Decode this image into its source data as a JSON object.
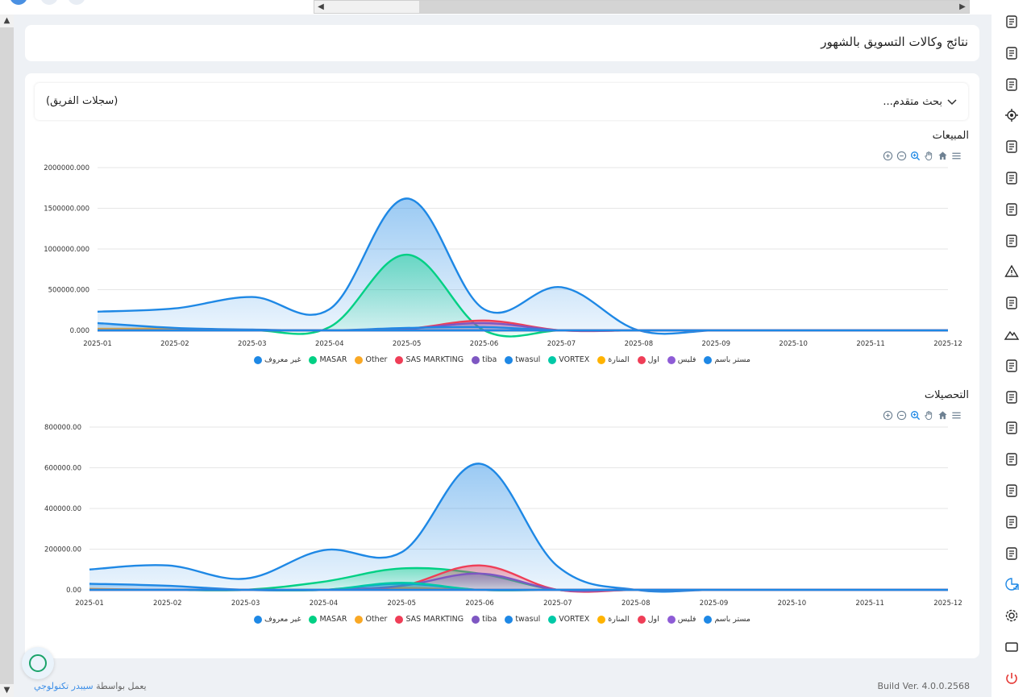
{
  "page_title": "نتائج وكالات التسويق بالشهور",
  "search": {
    "advanced_label": "بحث متقدم...",
    "team_records_label": "(سجلات الفريق)"
  },
  "footer": {
    "build": "Build Ver. 4.0.0.2568",
    "credit_prefix": "يعمل بواسطة",
    "credit_brand": "سيبدر تكنولوجي"
  },
  "sidebar_icons": [
    "building-icon",
    "lamp-icon",
    "phone-calls-icon",
    "target-icon",
    "telephone-icon",
    "folder-add-icon",
    "team-icon",
    "money-icon",
    "warning-icon",
    "video-call-icon",
    "mountain-icon",
    "invoice-icon",
    "pen-icon",
    "printer-user-icon",
    "delivery-truck-icon",
    "user-money-icon",
    "add-document-icon",
    "document-search-icon",
    "reports-chart-icon",
    "settings-icon",
    "window-icon",
    "power-icon"
  ],
  "colors": {
    "primary": "#1e88e5",
    "masar": "#00d084",
    "other": "#f9a825",
    "sas": "#ef3e57",
    "tiba": "#7e57c2",
    "twasul": "#1e88e5",
    "vortex": "#00c9a7",
    "manara": "#ffb300",
    "awal": "#ef3e57",
    "phils": "#8e5cd6",
    "mr_basem": "#1e88e5"
  },
  "charts": [
    {
      "title": "المبيعات",
      "chart_data": {
        "type": "area",
        "title": "المبيعات",
        "categories": [
          "2025-01",
          "2025-02",
          "2025-03",
          "2025-04",
          "2025-05",
          "2025-06",
          "2025-07",
          "2025-08",
          "2025-09",
          "2025-10",
          "2025-11",
          "2025-12"
        ],
        "y_ticks": [
          "0.000",
          "500000.000",
          "1000000.000",
          "1500000.000",
          "2000000.000"
        ],
        "ylim": [
          0,
          2000000
        ],
        "series": [
          {
            "name": "غير معروف",
            "color": "#1e88e5",
            "values": [
              230000,
              270000,
              410000,
              260000,
              1620000,
              260000,
              530000,
              0,
              0,
              0,
              0,
              0
            ]
          },
          {
            "name": "MASAR",
            "color": "#00d084",
            "values": [
              0,
              0,
              0,
              40000,
              930000,
              0,
              0,
              0,
              0,
              0,
              0,
              0
            ]
          },
          {
            "name": "Other",
            "color": "#f9a825",
            "values": [
              20000,
              20000,
              0,
              0,
              0,
              0,
              0,
              0,
              0,
              0,
              0,
              0
            ]
          },
          {
            "name": "SAS MARKTING",
            "color": "#ef3e57",
            "values": [
              0,
              0,
              0,
              0,
              20000,
              120000,
              0,
              0,
              0,
              0,
              0,
              0
            ]
          },
          {
            "name": "tiba",
            "color": "#7e57c2",
            "values": [
              0,
              0,
              0,
              0,
              20000,
              90000,
              0,
              0,
              0,
              0,
              0,
              0
            ]
          },
          {
            "name": "twasul",
            "color": "#1e88e5",
            "values": [
              90000,
              30000,
              10000,
              0,
              30000,
              40000,
              0,
              0,
              0,
              0,
              0,
              0
            ]
          },
          {
            "name": "VORTEX",
            "color": "#00c9a7",
            "values": [
              0,
              0,
              0,
              0,
              0,
              0,
              0,
              0,
              0,
              0,
              0,
              0
            ]
          },
          {
            "name": "المنارة",
            "color": "#ffb300",
            "values": [
              0,
              0,
              0,
              0,
              0,
              0,
              0,
              0,
              0,
              0,
              0,
              0
            ]
          },
          {
            "name": "اول",
            "color": "#ef3e57",
            "values": [
              0,
              0,
              0,
              0,
              0,
              0,
              0,
              0,
              0,
              0,
              0,
              0
            ]
          },
          {
            "name": "فليس",
            "color": "#8e5cd6",
            "values": [
              0,
              0,
              0,
              0,
              0,
              0,
              0,
              0,
              0,
              0,
              0,
              0
            ]
          },
          {
            "name": "مستر باسم",
            "color": "#1e88e5",
            "values": [
              0,
              0,
              0,
              0,
              0,
              0,
              0,
              0,
              0,
              0,
              0,
              0
            ]
          }
        ],
        "legend": "bottom-center",
        "grid": true
      }
    },
    {
      "title": "التحصيلات",
      "chart_data": {
        "type": "area",
        "title": "التحصيلات",
        "categories": [
          "2025-01",
          "2025-02",
          "2025-03",
          "2025-04",
          "2025-05",
          "2025-06",
          "2025-07",
          "2025-08",
          "2025-09",
          "2025-10",
          "2025-11",
          "2025-12"
        ],
        "y_ticks": [
          "0.00",
          "200000.00",
          "400000.00",
          "600000.00",
          "800000.00"
        ],
        "ylim": [
          0,
          800000
        ],
        "series": [
          {
            "name": "غير معروف",
            "color": "#1e88e5",
            "values": [
              100000,
              120000,
              55000,
              195000,
              185000,
              620000,
              115000,
              0,
              0,
              0,
              0,
              0
            ]
          },
          {
            "name": "MASAR",
            "color": "#00d084",
            "values": [
              0,
              0,
              0,
              40000,
              105000,
              80000,
              0,
              0,
              0,
              0,
              0,
              0
            ]
          },
          {
            "name": "Other",
            "color": "#f9a825",
            "values": [
              5000,
              0,
              0,
              0,
              10000,
              0,
              0,
              0,
              0,
              0,
              0,
              0
            ]
          },
          {
            "name": "SAS MARKTING",
            "color": "#ef3e57",
            "values": [
              0,
              0,
              0,
              0,
              20000,
              120000,
              0,
              0,
              0,
              0,
              0,
              0
            ]
          },
          {
            "name": "tiba",
            "color": "#7e57c2",
            "values": [
              0,
              0,
              0,
              0,
              20000,
              80000,
              0,
              0,
              0,
              0,
              0,
              0
            ]
          },
          {
            "name": "twasul",
            "color": "#1e88e5",
            "values": [
              30000,
              20000,
              0,
              0,
              30000,
              0,
              0,
              0,
              0,
              0,
              0,
              0
            ]
          },
          {
            "name": "VORTEX",
            "color": "#00c9a7",
            "values": [
              0,
              0,
              0,
              0,
              35000,
              0,
              0,
              0,
              0,
              0,
              0,
              0
            ]
          },
          {
            "name": "المنارة",
            "color": "#ffb300",
            "values": [
              0,
              0,
              0,
              0,
              0,
              0,
              0,
              0,
              0,
              0,
              0,
              0
            ]
          },
          {
            "name": "اول",
            "color": "#ef3e57",
            "values": [
              0,
              0,
              0,
              0,
              0,
              0,
              0,
              0,
              0,
              0,
              0,
              0
            ]
          },
          {
            "name": "فليس",
            "color": "#8e5cd6",
            "values": [
              0,
              0,
              0,
              0,
              0,
              0,
              0,
              0,
              0,
              0,
              0,
              0
            ]
          },
          {
            "name": "مستر باسم",
            "color": "#1e88e5",
            "values": [
              0,
              0,
              0,
              0,
              0,
              0,
              0,
              0,
              0,
              0,
              0,
              0
            ]
          }
        ],
        "legend": "bottom-center",
        "grid": true
      }
    }
  ]
}
